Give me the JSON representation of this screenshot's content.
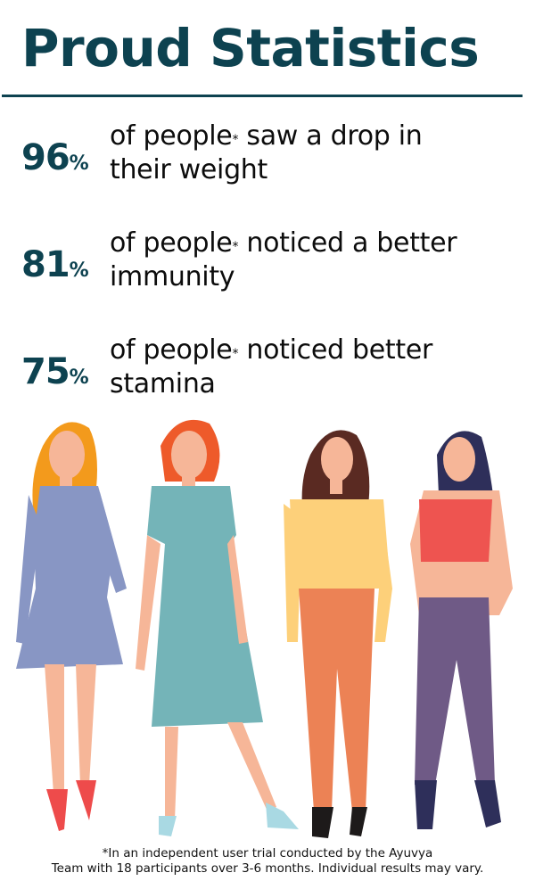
{
  "title": "Proud Statistics",
  "stats": [
    {
      "value": "96",
      "unit": "%",
      "line1": "of people",
      "asterisk": "*",
      "line1b": " saw a drop in",
      "line2": "their weight"
    },
    {
      "value": "81",
      "unit": "%",
      "line1": "of people",
      "asterisk": "*",
      "line1b": " noticed a better",
      "line2": "immunity"
    },
    {
      "value": "75",
      "unit": "%",
      "line1": "of people",
      "asterisk": "*",
      "line1b": " noticed better",
      "line2": "stamina"
    }
  ],
  "footnote": {
    "line1": "*In an independent user trial conducted by the Ayuvya",
    "line2": "Team with 18 participants over 3-6 months. Individual results may vary."
  },
  "colors": {
    "accent": "#0d4250",
    "dress1": "#8896c4",
    "dress2": "#74b4b8",
    "top3": "#fdd07a",
    "pants3": "#ec8255",
    "top4": "#ee5450",
    "pants4": "#6f5a86",
    "skin": "#f6b698"
  }
}
